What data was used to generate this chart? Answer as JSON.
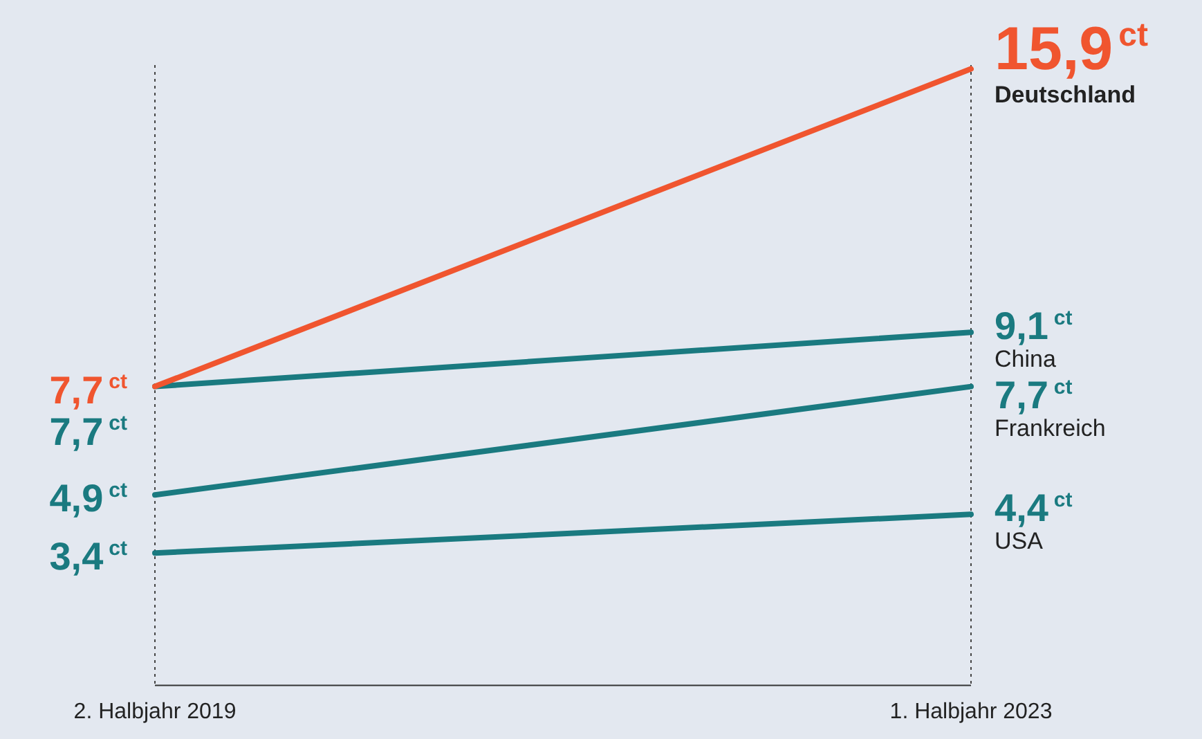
{
  "chart_data": {
    "type": "line",
    "categories": [
      "2. Halbjahr 2019",
      "1. Halbjahr 2023"
    ],
    "series": [
      {
        "name": "Deutschland",
        "color": "#f0552f",
        "values": [
          7.7,
          15.9
        ],
        "value_labels": [
          "7,7$^{ct}$",
          "15,9$^{ct}$"
        ]
      },
      {
        "name": "China",
        "color": "#1a7a80",
        "values": [
          7.7,
          9.1
        ],
        "value_labels": [
          "7,7$^{ct}$",
          "9,1$^{ct}$"
        ]
      },
      {
        "name": "Frankreich",
        "color": "#1a7a80",
        "values": [
          4.9,
          7.7
        ],
        "value_labels": [
          "4,9$^{ct}$",
          "7,7$^{ct}$"
        ]
      },
      {
        "name": "USA",
        "color": "#1a7a80",
        "values": [
          3.4,
          4.4
        ],
        "value_labels": [
          "3,4$^{ct}$",
          "4,4$^{ct}$"
        ]
      }
    ],
    "ylim": [
      0,
      16
    ],
    "tick_labels": "x",
    "grid": "x",
    "legend": false,
    "marker": "none",
    "line_style": "solid"
  }
}
